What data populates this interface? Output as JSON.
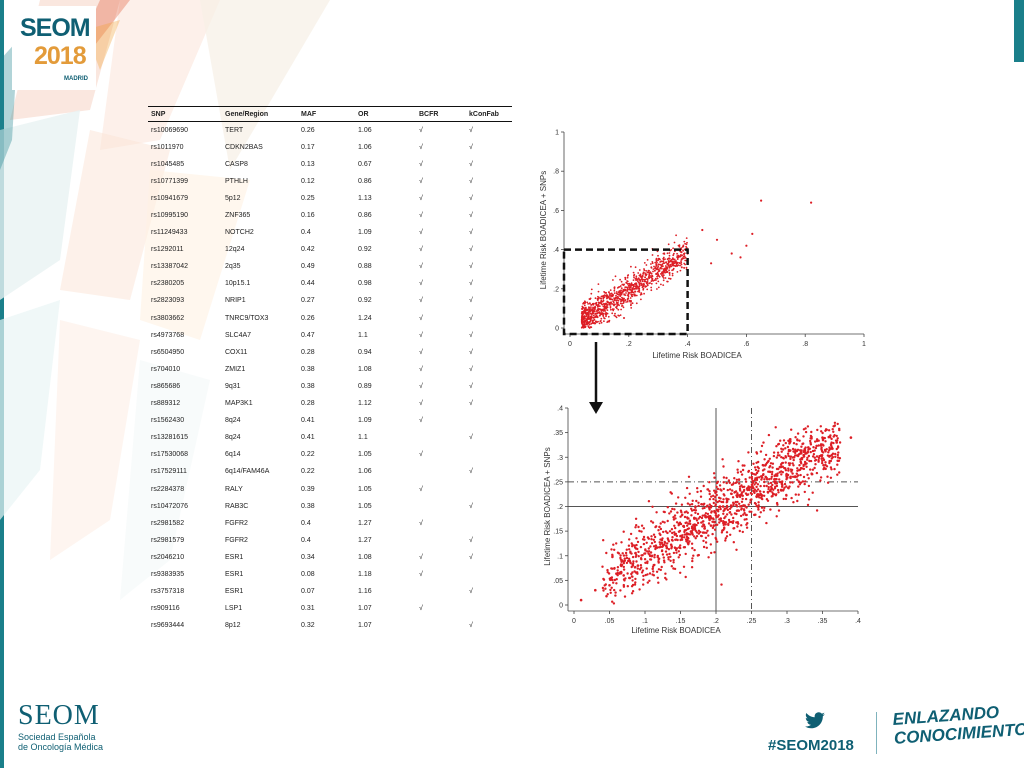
{
  "logo": {
    "brand": "SEOM",
    "year": "2018",
    "city": "MADRID"
  },
  "table": {
    "headers": [
      "SNP",
      "Gene/Region",
      "MAF",
      "OR",
      "BCFR",
      "kConFab"
    ],
    "rows": [
      [
        "rs10069690",
        "TERT",
        "0.26",
        "1.06",
        "√",
        "√"
      ],
      [
        "rs1011970",
        "CDKN2BAS",
        "0.17",
        "1.06",
        "√",
        "√"
      ],
      [
        "rs1045485",
        "CASP8",
        "0.13",
        "0.67",
        "√",
        "√"
      ],
      [
        "rs10771399",
        "PTHLH",
        "0.12",
        "0.86",
        "√",
        "√"
      ],
      [
        "rs10941679",
        "5p12",
        "0.25",
        "1.13",
        "√",
        "√"
      ],
      [
        "rs10995190",
        "ZNF365",
        "0.16",
        "0.86",
        "√",
        "√"
      ],
      [
        "rs11249433",
        "NOTCH2",
        "0.4",
        "1.09",
        "√",
        "√"
      ],
      [
        "rs1292011",
        "12q24",
        "0.42",
        "0.92",
        "√",
        "√"
      ],
      [
        "rs13387042",
        "2q35",
        "0.49",
        "0.88",
        "√",
        "√"
      ],
      [
        "rs2380205",
        "10p15.1",
        "0.44",
        "0.98",
        "√",
        "√"
      ],
      [
        "rs2823093",
        "NRIP1",
        "0.27",
        "0.92",
        "√",
        "√"
      ],
      [
        "rs3803662",
        "TNRC9/TOX3",
        "0.26",
        "1.24",
        "√",
        "√"
      ],
      [
        "rs4973768",
        "SLC4A7",
        "0.47",
        "1.1",
        "√",
        "√"
      ],
      [
        "rs6504950",
        "COX11",
        "0.28",
        "0.94",
        "√",
        "√"
      ],
      [
        "rs704010",
        "ZMIZ1",
        "0.38",
        "1.08",
        "√",
        "√"
      ],
      [
        "rs865686",
        "9q31",
        "0.38",
        "0.89",
        "√",
        "√"
      ],
      [
        "rs889312",
        "MAP3K1",
        "0.28",
        "1.12",
        "√",
        "√"
      ],
      [
        "rs1562430",
        "8q24",
        "0.41",
        "1.09",
        "√",
        ""
      ],
      [
        "rs13281615",
        "8q24",
        "0.41",
        "1.1",
        "",
        "√"
      ],
      [
        "rs17530068",
        "6q14",
        "0.22",
        "1.05",
        "√",
        ""
      ],
      [
        "rs17529111",
        "6q14/FAM46A",
        "0.22",
        "1.06",
        "",
        "√"
      ],
      [
        "rs2284378",
        "RALY",
        "0.39",
        "1.05",
        "√",
        ""
      ],
      [
        "rs10472076",
        "RAB3C",
        "0.38",
        "1.05",
        "",
        "√"
      ],
      [
        "rs2981582",
        "FGFR2",
        "0.4",
        "1.27",
        "√",
        ""
      ],
      [
        "rs2981579",
        "FGFR2",
        "0.4",
        "1.27",
        "",
        "√"
      ],
      [
        "rs2046210",
        "ESR1",
        "0.34",
        "1.08",
        "√",
        "√"
      ],
      [
        "rs9383935",
        "ESR1",
        "0.08",
        "1.18",
        "√",
        ""
      ],
      [
        "rs3757318",
        "ESR1",
        "0.07",
        "1.16",
        "",
        "√"
      ],
      [
        "rs909116",
        "LSP1",
        "0.31",
        "1.07",
        "√",
        ""
      ],
      [
        "rs9693444",
        "8p12",
        "0.32",
        "1.07",
        "",
        "√"
      ]
    ]
  },
  "chart_data": [
    {
      "type": "scatter",
      "xlabel": "Lifetime Risk BOADICEA",
      "ylabel": "Lifetime Risk BOADICEA + SNPs",
      "xlim": [
        0,
        1
      ],
      "ylim": [
        0,
        1
      ],
      "xticks": [
        "0",
        ".2",
        ".4",
        ".6",
        ".8",
        "1"
      ],
      "yticks": [
        "0",
        ".2",
        ".4",
        ".6",
        ".8",
        "1"
      ],
      "grid": false,
      "highlight_box": {
        "x": [
          0,
          0.4
        ],
        "y": [
          0,
          0.4
        ],
        "style": "dashed"
      },
      "points": [
        [
          0.65,
          0.65
        ],
        [
          0.82,
          0.64
        ],
        [
          0.6,
          0.42
        ],
        [
          0.62,
          0.48
        ],
        [
          0.55,
          0.38
        ],
        [
          0.5,
          0.45
        ],
        [
          0.45,
          0.5
        ],
        [
          0.58,
          0.36
        ],
        [
          0.48,
          0.33
        ],
        [
          0.07,
          0.05
        ],
        [
          0.1,
          0.08
        ],
        [
          0.12,
          0.1
        ],
        [
          0.15,
          0.12
        ],
        [
          0.18,
          0.15
        ],
        [
          0.2,
          0.18
        ],
        [
          0.22,
          0.2
        ],
        [
          0.25,
          0.22
        ],
        [
          0.28,
          0.25
        ],
        [
          0.3,
          0.27
        ],
        [
          0.32,
          0.3
        ],
        [
          0.35,
          0.32
        ],
        [
          0.38,
          0.35
        ],
        [
          0.4,
          0.38
        ]
      ],
      "series_color": "#dd1f26"
    },
    {
      "type": "scatter",
      "xlabel": "Lifetime Risk BOADICEA",
      "ylabel": "Lifetime Risk BOADICEA + SNPs",
      "xlim": [
        0,
        0.4
      ],
      "ylim": [
        0,
        0.4
      ],
      "xticks": [
        "0",
        ".05",
        ".1",
        ".15",
        ".2",
        ".25",
        ".3",
        ".35",
        ".4"
      ],
      "yticks": [
        "0",
        ".05",
        ".1",
        ".15",
        ".2",
        ".25",
        ".3",
        ".35",
        ".4"
      ],
      "grid": false,
      "reference_lines": [
        {
          "axis": "x",
          "value": 0.2,
          "style": "solid"
        },
        {
          "axis": "x",
          "value": 0.25,
          "style": "dashdot"
        },
        {
          "axis": "y",
          "value": 0.2,
          "style": "solid"
        },
        {
          "axis": "y",
          "value": 0.25,
          "style": "dashdot"
        }
      ],
      "points": [
        [
          0.01,
          0.01
        ],
        [
          0.03,
          0.03
        ],
        [
          0.05,
          0.04
        ],
        [
          0.07,
          0.06
        ],
        [
          0.09,
          0.08
        ],
        [
          0.11,
          0.1
        ],
        [
          0.13,
          0.12
        ],
        [
          0.15,
          0.14
        ],
        [
          0.17,
          0.16
        ],
        [
          0.19,
          0.18
        ],
        [
          0.21,
          0.2
        ],
        [
          0.23,
          0.22
        ],
        [
          0.25,
          0.24
        ],
        [
          0.27,
          0.26
        ],
        [
          0.29,
          0.28
        ],
        [
          0.31,
          0.3
        ],
        [
          0.33,
          0.32
        ],
        [
          0.35,
          0.34
        ],
        [
          0.37,
          0.33
        ],
        [
          0.39,
          0.34
        ]
      ],
      "series_color": "#dd1f26"
    }
  ],
  "footer": {
    "seom": "SEOM",
    "org_line1": "Sociedad  Española",
    "org_line2": "de Oncología Médica",
    "hashtag": "#SEOM2018",
    "slogan_line1": "ENLAZANDO",
    "slogan_line2": "CONOCIMIENTO"
  }
}
